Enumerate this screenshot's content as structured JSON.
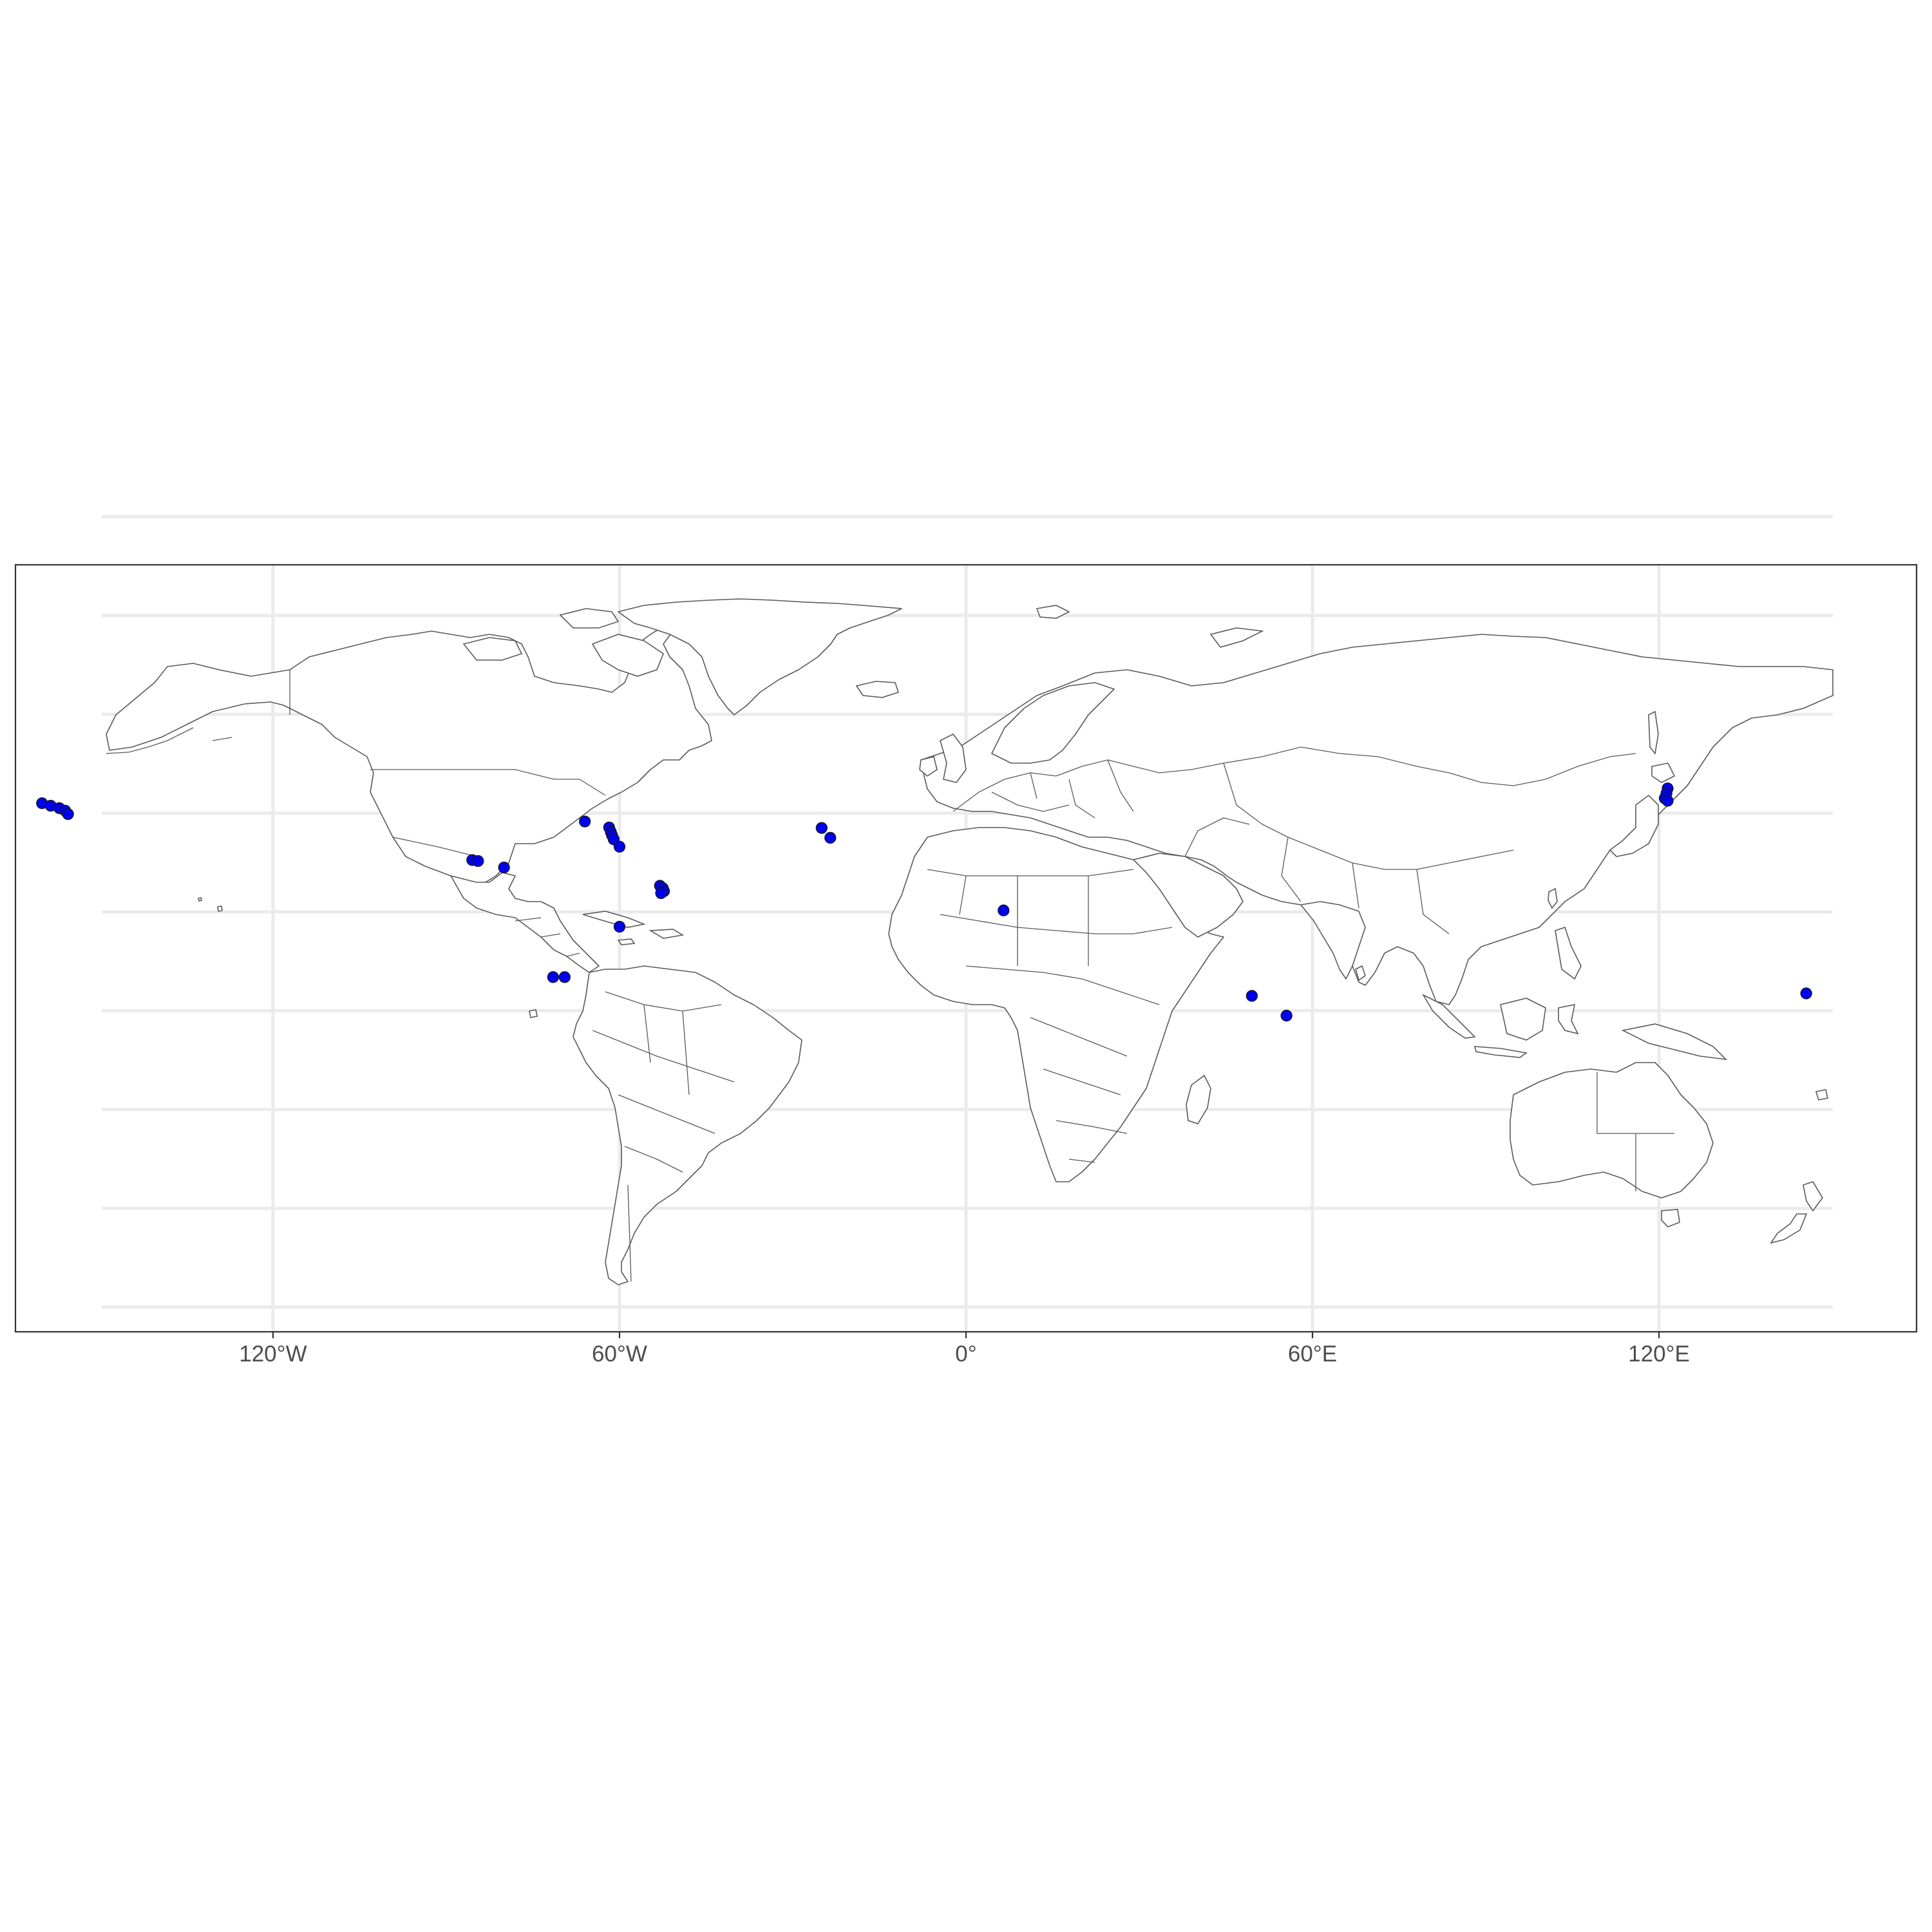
{
  "map": {
    "projection": "equirectangular",
    "background": "#ffffff",
    "land_stroke": "#595959",
    "grid_color": "#ebebeb",
    "x_axis": {
      "ticks": [
        {
          "value": -120,
          "label": "120°W"
        },
        {
          "value": -60,
          "label": "60°W"
        },
        {
          "value": 0,
          "label": "0°"
        },
        {
          "value": 60,
          "label": "60°E"
        },
        {
          "value": 120,
          "label": "120°E"
        }
      ],
      "range": [
        -180,
        180
      ]
    },
    "y_axis": {
      "gridlines": [
        -80,
        -60,
        -40,
        -20,
        0,
        20,
        40,
        60,
        80
      ],
      "labels_visible": false,
      "range": [
        -90,
        90
      ]
    },
    "legend": "none"
  },
  "chart_data": {
    "type": "scatter",
    "title": "",
    "xlabel": "",
    "ylabel": "",
    "xlim": [
      -180,
      180
    ],
    "ylim": [
      -90,
      90
    ],
    "grid": true,
    "point_color": "#0000ee",
    "series": [
      {
        "points": [
          {
            "lon": -160,
            "lat": 22
          },
          {
            "lon": -158.5,
            "lat": 21.5
          },
          {
            "lon": -157,
            "lat": 21
          },
          {
            "lon": -156,
            "lat": 20.5
          },
          {
            "lon": -155.5,
            "lat": 19.8
          },
          {
            "lon": -85.5,
            "lat": 10.5
          },
          {
            "lon": -84.5,
            "lat": 10.3
          },
          {
            "lon": -80,
            "lat": 9
          },
          {
            "lon": -66,
            "lat": 18.3
          },
          {
            "lon": -61.8,
            "lat": 17.1
          },
          {
            "lon": -61.5,
            "lat": 16.2
          },
          {
            "lon": -61.3,
            "lat": 15.5
          },
          {
            "lon": -61,
            "lat": 14.7
          },
          {
            "lon": -60,
            "lat": 13.2
          },
          {
            "lon": -53,
            "lat": 5.3
          },
          {
            "lon": -52.5,
            "lat": 4.8
          },
          {
            "lon": -52.3,
            "lat": 4.2
          },
          {
            "lon": -52.8,
            "lat": 3.8
          },
          {
            "lon": -60,
            "lat": -3
          },
          {
            "lon": -71.5,
            "lat": -13.2
          },
          {
            "lon": -69.5,
            "lat": -13.2
          },
          {
            "lon": -25,
            "lat": 17
          },
          {
            "lon": -23.5,
            "lat": 15
          },
          {
            "lon": 6.5,
            "lat": 0.3
          },
          {
            "lon": 49.5,
            "lat": -17
          },
          {
            "lon": 55.5,
            "lat": -21
          },
          {
            "lon": 121.5,
            "lat": 25
          },
          {
            "lon": 121.3,
            "lat": 24
          },
          {
            "lon": 121,
            "lat": 23
          },
          {
            "lon": 121.5,
            "lat": 22.5
          },
          {
            "lon": 145.5,
            "lat": -16.5
          }
        ]
      }
    ]
  }
}
